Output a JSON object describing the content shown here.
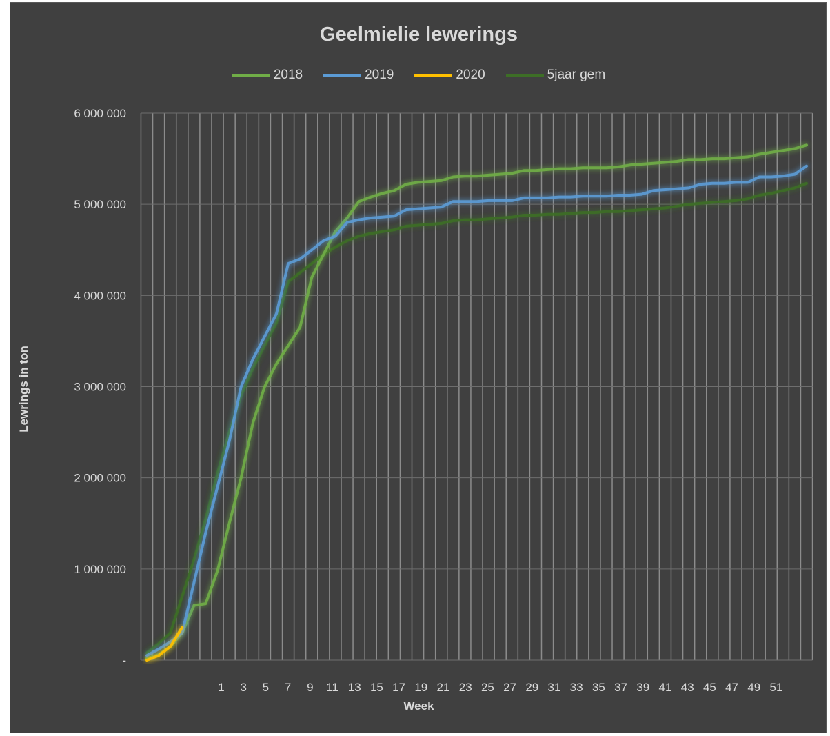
{
  "chart_data": {
    "type": "line",
    "title": "Geelmielie lewerings",
    "xlabel": "Week",
    "ylabel": "Lewrings in ton",
    "ylim": [
      0,
      6000000
    ],
    "yticks": [
      {
        "value": 0,
        "label": "-"
      },
      {
        "value": 1000000,
        "label": "1 000 000"
      },
      {
        "value": 2000000,
        "label": "2 000 000"
      },
      {
        "value": 3000000,
        "label": "3 000 000"
      },
      {
        "value": 4000000,
        "label": "4 000 000"
      },
      {
        "value": 5000000,
        "label": "5 000 000"
      },
      {
        "value": 6000000,
        "label": "6 000 000"
      }
    ],
    "xtick_labels": [
      "1",
      "3",
      "5",
      "7",
      "9",
      "11",
      "13",
      "15",
      "17",
      "19",
      "21",
      "23",
      "25",
      "27",
      "29",
      "31",
      "33",
      "35",
      "37",
      "39",
      "41",
      "43",
      "45",
      "47",
      "49",
      "51"
    ],
    "legend_position": "top",
    "grid": true,
    "series": [
      {
        "name": "2018",
        "color": "#70ad47",
        "values": [
          20000,
          60000,
          150000,
          300000,
          600000,
          620000,
          980000,
          1500000,
          2000000,
          2600000,
          3000000,
          3250000,
          3450000,
          3650000,
          4200000,
          4450000,
          4700000,
          4850000,
          5030000,
          5080000,
          5120000,
          5150000,
          5220000,
          5240000,
          5250000,
          5260000,
          5300000,
          5310000,
          5310000,
          5320000,
          5330000,
          5340000,
          5370000,
          5370000,
          5380000,
          5390000,
          5390000,
          5400000,
          5400000,
          5400000,
          5410000,
          5430000,
          5440000,
          5450000,
          5460000,
          5470000,
          5490000,
          5490000,
          5500000,
          5500000,
          5510000,
          5520000,
          5550000,
          5570000,
          5590000,
          5610000,
          5650000
        ]
      },
      {
        "name": "2019",
        "color": "#5b9bd5",
        "values": [
          50000,
          120000,
          200000,
          300000,
          850000,
          1400000,
          1900000,
          2400000,
          3000000,
          3300000,
          3550000,
          3800000,
          4350000,
          4400000,
          4500000,
          4600000,
          4650000,
          4800000,
          4830000,
          4850000,
          4860000,
          4870000,
          4940000,
          4950000,
          4960000,
          4970000,
          5030000,
          5030000,
          5030000,
          5040000,
          5040000,
          5040000,
          5070000,
          5070000,
          5070000,
          5080000,
          5080000,
          5090000,
          5090000,
          5090000,
          5100000,
          5100000,
          5110000,
          5150000,
          5160000,
          5170000,
          5180000,
          5220000,
          5230000,
          5230000,
          5240000,
          5240000,
          5300000,
          5300000,
          5310000,
          5330000,
          5420000
        ]
      },
      {
        "name": "2020",
        "color": "#ffc000",
        "values": [
          0,
          50000,
          150000,
          360000
        ]
      },
      {
        "name": "5jaar gem",
        "color": "#3d6e26",
        "values": [
          80000,
          180000,
          300000,
          700000,
          1100000,
          1550000,
          2050000,
          2500000,
          2900000,
          3200000,
          3450000,
          3700000,
          4150000,
          4250000,
          4350000,
          4450000,
          4530000,
          4600000,
          4650000,
          4680000,
          4700000,
          4720000,
          4760000,
          4770000,
          4780000,
          4790000,
          4820000,
          4830000,
          4830000,
          4840000,
          4850000,
          4860000,
          4880000,
          4880000,
          4890000,
          4890000,
          4900000,
          4910000,
          4910000,
          4920000,
          4920000,
          4930000,
          4940000,
          4950000,
          4960000,
          4980000,
          5000000,
          5010000,
          5020000,
          5030000,
          5040000,
          5060000,
          5100000,
          5120000,
          5150000,
          5180000,
          5230000
        ]
      }
    ]
  }
}
